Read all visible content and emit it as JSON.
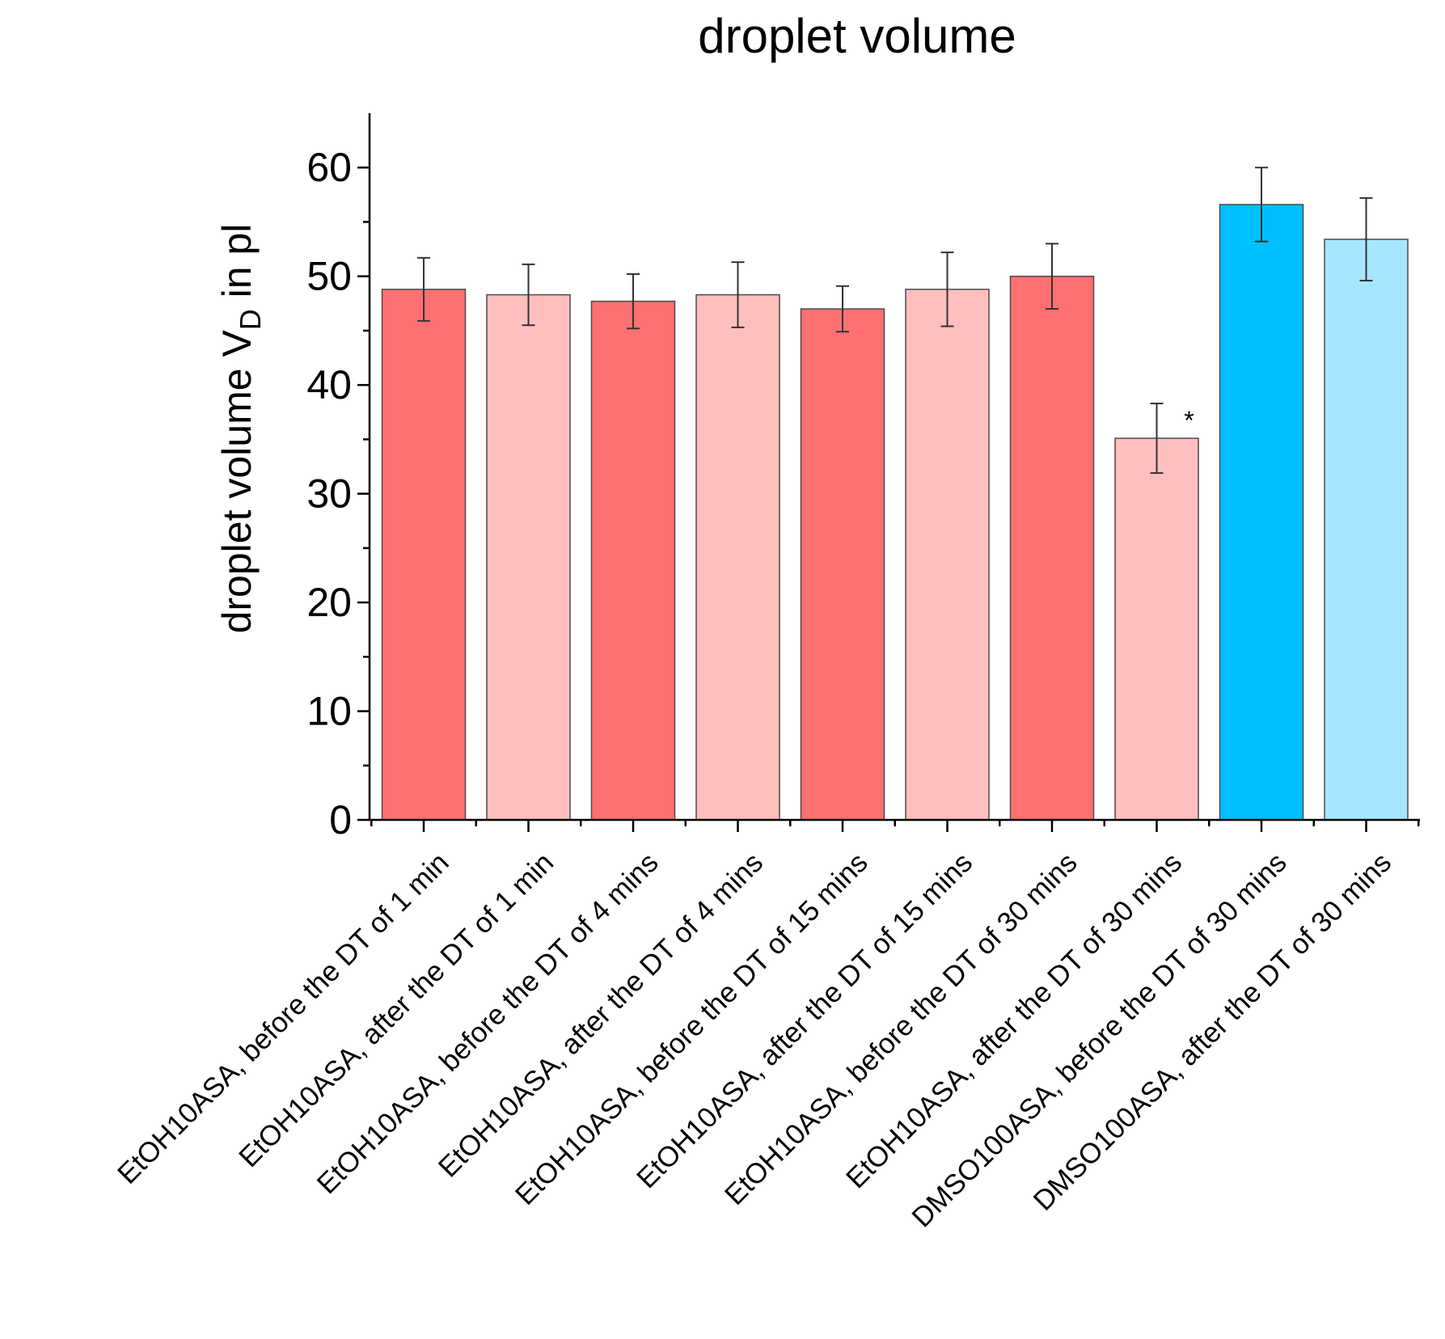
{
  "chart_data": {
    "type": "bar",
    "title": "droplet volume",
    "ylabel": "droplet volume V",
    "ylabel_subscript": "D",
    "ylabel_suffix": " in pl",
    "xlabel": "",
    "ylim": [
      0,
      65
    ],
    "yticks": [
      0,
      10,
      20,
      30,
      40,
      50,
      60
    ],
    "ytick_labels": [
      "0",
      "10",
      "20",
      "30",
      "40",
      "50",
      "60"
    ],
    "grid": false,
    "categories": [
      "EtOH10ASA, before the DT of 1 min",
      "EtOH10ASA, after the DT of 1 min",
      "EtOH10ASA, before the DT of 4 mins",
      "EtOH10ASA, after the DT of 4 mins",
      "EtOH10ASA, before the DT of 15 mins",
      "EtOH10ASA, after the DT of 15 mins",
      "EtOH10ASA, before the DT of 30 mins",
      "EtOH10ASA, after the DT of 30 mins",
      "DMSO100ASA, before the DT of 30 mins",
      "DMSO100ASA, after the DT of 30 mins"
    ],
    "values": [
      48.8,
      48.3,
      47.7,
      48.3,
      47.0,
      48.8,
      50.0,
      35.1,
      56.6,
      53.4
    ],
    "errors": [
      2.9,
      2.8,
      2.5,
      3.0,
      2.1,
      3.4,
      3.0,
      3.2,
      3.4,
      3.8
    ],
    "bar_colors": [
      "#ff7070",
      "#ffbfbf",
      "#ff7070",
      "#ffbfbf",
      "#ff7070",
      "#ffbfbf",
      "#ff7070",
      "#ffbfbf",
      "#00bfff",
      "#a6e6ff"
    ],
    "annotations": [
      {
        "bar_index": 7,
        "text": "*"
      }
    ]
  }
}
